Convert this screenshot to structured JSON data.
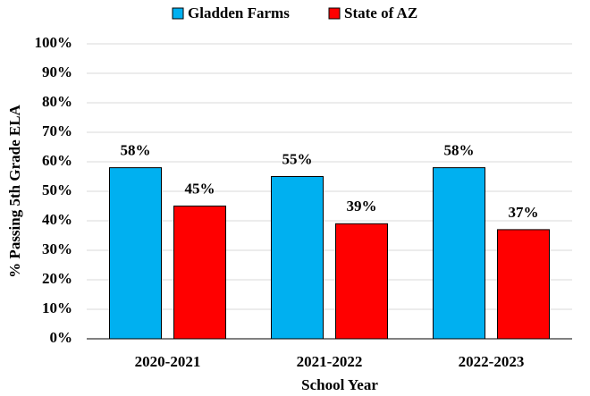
{
  "chart_data": {
    "type": "bar",
    "categories": [
      "2020-2021",
      "2021-2022",
      "2022-2023"
    ],
    "series": [
      {
        "name": "Gladden Farms",
        "color": "#00b0f0",
        "values": [
          58,
          55,
          58
        ],
        "value_labels": [
          "58%",
          "55%",
          "58%"
        ]
      },
      {
        "name": "State of AZ",
        "color": "#ff0000",
        "values": [
          45,
          39,
          37
        ],
        "value_labels": [
          "45%",
          "39%",
          "37%"
        ]
      }
    ],
    "xlabel": "School Year",
    "ylabel": "% Passing 5th Grade ELA",
    "ylim": [
      0,
      100
    ],
    "yticks": [
      {
        "value": 0,
        "label": "0%"
      },
      {
        "value": 10,
        "label": "10%"
      },
      {
        "value": 20,
        "label": "20%"
      },
      {
        "value": 30,
        "label": "30%"
      },
      {
        "value": 40,
        "label": "40%"
      },
      {
        "value": 50,
        "label": "50%"
      },
      {
        "value": 60,
        "label": "60%"
      },
      {
        "value": 70,
        "label": "70%"
      },
      {
        "value": 80,
        "label": "80%"
      },
      {
        "value": 90,
        "label": "90%"
      },
      {
        "value": 100,
        "label": "100%"
      }
    ],
    "grid": true,
    "legend": "top"
  }
}
